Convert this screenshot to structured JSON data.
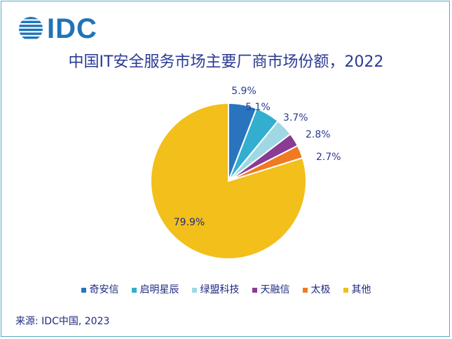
{
  "logo": {
    "text": "IDC",
    "color": "#1f74b8"
  },
  "chart_data": {
    "type": "pie",
    "title": "中国IT安全服务市场主要厂商市场份额，2022",
    "categories": [
      "奇安信",
      "启明星辰",
      "绿盟科技",
      "天融信",
      "太极",
      "其他"
    ],
    "values": [
      5.9,
      5.1,
      3.7,
      2.8,
      2.7,
      79.9
    ],
    "value_labels": [
      "5.9%",
      "5.1%",
      "3.7%",
      "2.8%",
      "2.7%",
      "79.9%"
    ],
    "colors": [
      "#2a74bf",
      "#32afcf",
      "#9fd8e4",
      "#8a3b94",
      "#ef7a22",
      "#f2bf1b"
    ],
    "legend_position": "bottom",
    "start_angle": "12 o'clock, clockwise"
  },
  "source": "来源: IDC中国, 2023"
}
